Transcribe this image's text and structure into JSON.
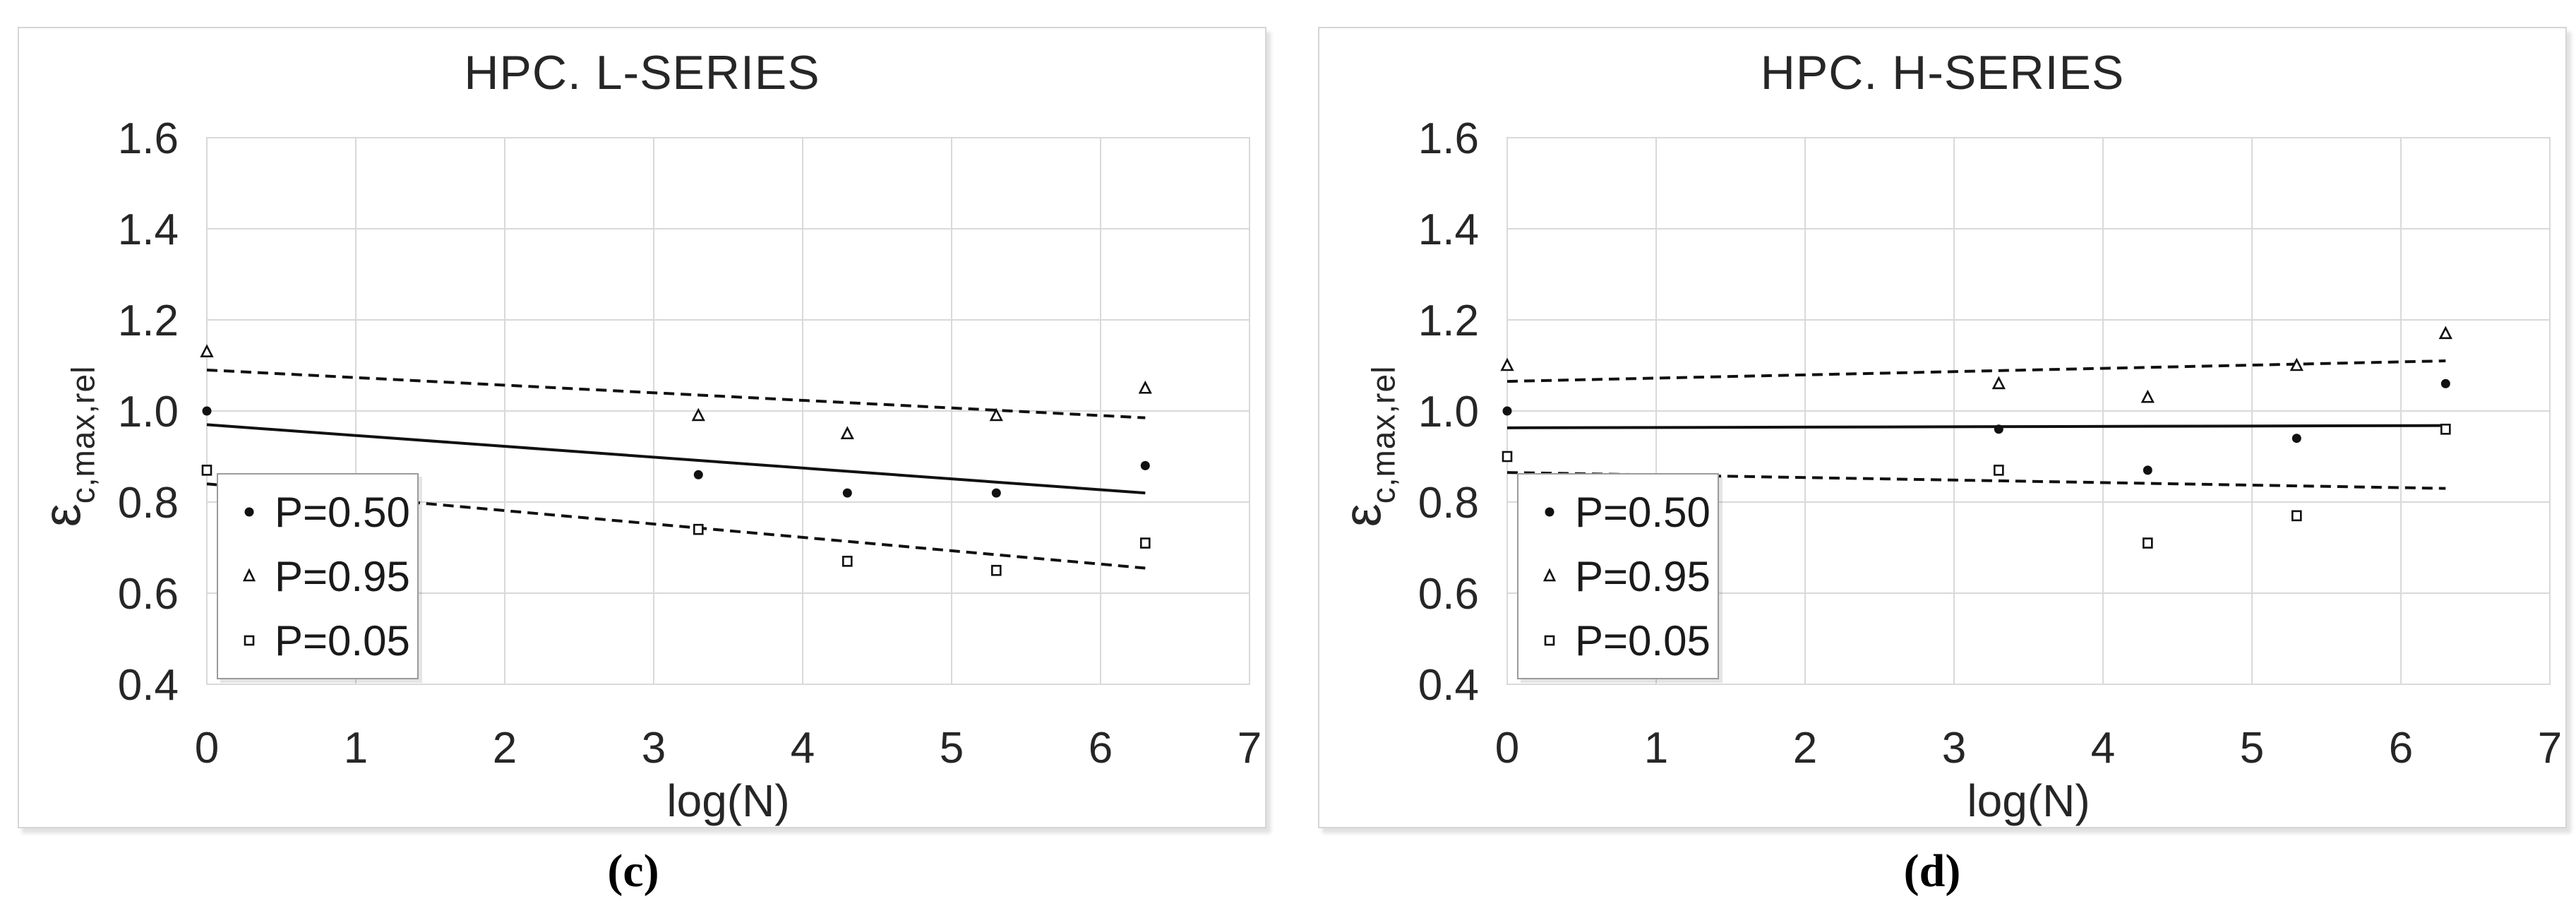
{
  "panels": [
    {
      "caption": "(c)",
      "ylabel_main": "ε",
      "ylabel_sub": "c,max,rel"
    },
    {
      "caption": "(d)",
      "ylabel_main": "ε",
      "ylabel_sub": "c,max,rel"
    }
  ],
  "legend": {
    "items": [
      {
        "label": "P=0.50",
        "marker": "filled-circle"
      },
      {
        "label": "P=0.95",
        "marker": "open-triangle"
      },
      {
        "label": "P=0.05",
        "marker": "open-square"
      }
    ]
  },
  "chart_data": [
    {
      "type": "scatter",
      "title": "HPC. L-SERIES",
      "xlabel": "log(N)",
      "ylabel": "ε_c,max,rel",
      "xlim": [
        0,
        7
      ],
      "ylim": [
        0.4,
        1.6
      ],
      "x_ticks": [
        "0",
        "1",
        "2",
        "3",
        "4",
        "5",
        "6",
        "7"
      ],
      "y_ticks": [
        "1.6",
        "1.4",
        "1.2",
        "1.0",
        "0.8",
        "0.6",
        "0.4"
      ],
      "grid": true,
      "legend_position": "lower-left",
      "series": [
        {
          "name": "P=0.50",
          "marker": "filled-circle",
          "x": [
            0,
            3.3,
            4.3,
            5.3,
            6.3
          ],
          "y": [
            1.0,
            0.86,
            0.82,
            0.82,
            0.88
          ],
          "trendline": {
            "style": "solid",
            "x": [
              0,
              6.3
            ],
            "y": [
              0.97,
              0.82
            ]
          }
        },
        {
          "name": "P=0.95",
          "marker": "open-triangle",
          "x": [
            0,
            3.3,
            4.3,
            5.3,
            6.3
          ],
          "y": [
            1.13,
            0.99,
            0.95,
            0.99,
            1.05
          ],
          "trendline": {
            "style": "dashed",
            "x": [
              0,
              6.3
            ],
            "y": [
              1.09,
              0.985
            ]
          }
        },
        {
          "name": "P=0.05",
          "marker": "open-square",
          "x": [
            0,
            3.3,
            4.3,
            5.3,
            6.3
          ],
          "y": [
            0.87,
            0.74,
            0.67,
            0.65,
            0.71
          ],
          "trendline": {
            "style": "dashed",
            "x": [
              0,
              6.3
            ],
            "y": [
              0.84,
              0.655
            ]
          }
        }
      ]
    },
    {
      "type": "scatter",
      "title": "HPC. H-SERIES",
      "xlabel": "log(N)",
      "ylabel": "ε_c,max,rel",
      "xlim": [
        0,
        7
      ],
      "ylim": [
        0.4,
        1.6
      ],
      "x_ticks": [
        "0",
        "1",
        "2",
        "3",
        "4",
        "5",
        "6",
        "7"
      ],
      "y_ticks": [
        "1.6",
        "1.4",
        "1.2",
        "1.0",
        "0.8",
        "0.6",
        "0.4"
      ],
      "grid": true,
      "legend_position": "lower-left",
      "series": [
        {
          "name": "P=0.50",
          "marker": "filled-circle",
          "x": [
            0,
            3.3,
            4.3,
            5.3,
            6.3
          ],
          "y": [
            1.0,
            0.96,
            0.87,
            0.94,
            1.06
          ],
          "trendline": {
            "style": "solid",
            "x": [
              0,
              6.3
            ],
            "y": [
              0.963,
              0.968
            ]
          }
        },
        {
          "name": "P=0.95",
          "marker": "open-triangle",
          "x": [
            0,
            3.3,
            4.3,
            5.3,
            6.3
          ],
          "y": [
            1.1,
            1.06,
            1.03,
            1.1,
            1.17
          ],
          "trendline": {
            "style": "dashed",
            "x": [
              0,
              6.3
            ],
            "y": [
              1.065,
              1.11
            ]
          }
        },
        {
          "name": "P=0.05",
          "marker": "open-square",
          "x": [
            0,
            3.3,
            4.3,
            5.3,
            6.3
          ],
          "y": [
            0.9,
            0.87,
            0.71,
            0.77,
            0.96
          ],
          "trendline": {
            "style": "dashed",
            "x": [
              0,
              6.3
            ],
            "y": [
              0.865,
              0.83
            ]
          }
        }
      ]
    }
  ]
}
